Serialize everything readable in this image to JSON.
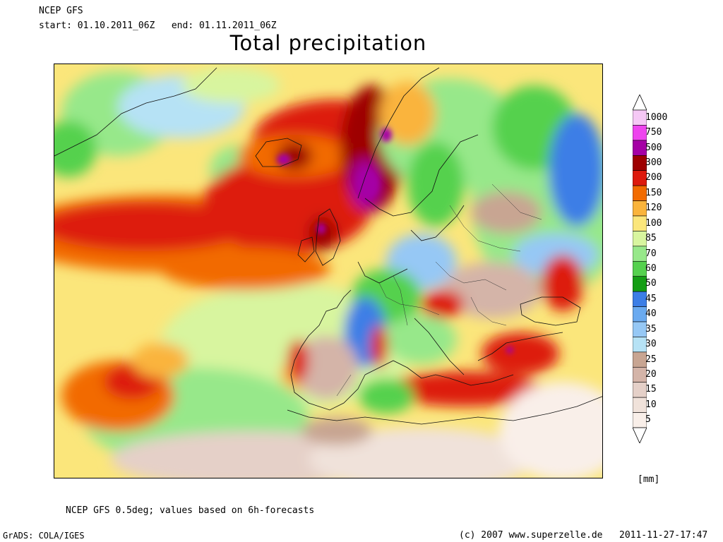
{
  "header": {
    "model": "NCEP GFS",
    "period": "start: 01.10.2011_06Z   end: 01.11.2011_06Z"
  },
  "title": "Total precipitation",
  "legend": {
    "units": "[mm]",
    "levels": [
      "1000",
      "750",
      "500",
      "300",
      "200",
      "150",
      "120",
      "100",
      "85",
      "70",
      "60",
      "50",
      "45",
      "40",
      "35",
      "30",
      "25",
      "20",
      "15",
      "10",
      "5"
    ],
    "colors": [
      "#f5c8f5",
      "#ee44ee",
      "#a500a5",
      "#9e0000",
      "#dd1a0d",
      "#f26b00",
      "#fab43c",
      "#fbe67b",
      "#d8f59f",
      "#97e88a",
      "#55d14e",
      "#149e14",
      "#3c7ee6",
      "#6aaaf0",
      "#96c8f5",
      "#b6e2f5",
      "#c8a592",
      "#d4b4a8",
      "#e5d0c8",
      "#f0e2da",
      "#f9efe9"
    ]
  },
  "footer": {
    "note": "NCEP GFS 0.5deg; values based on 6h-forecasts",
    "credit": "GrADS: COLA/IGES",
    "copyright": "(c) 2007 www.superzelle.de",
    "timestamp": "2011-11-27-17:47"
  }
}
